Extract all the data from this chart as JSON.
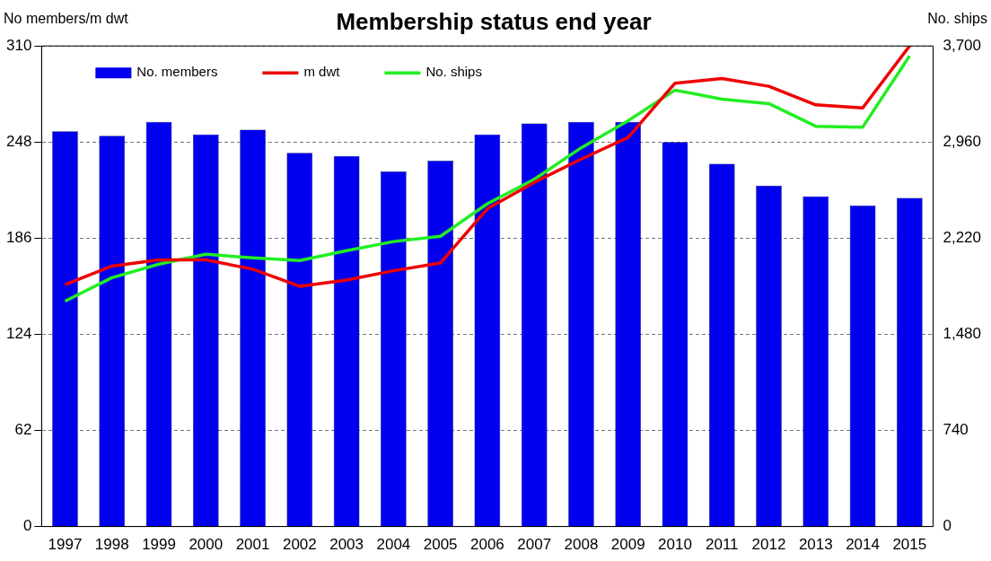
{
  "chart_data": {
    "type": "bar",
    "title": "Membership status end year",
    "ylabel": "No members/m dwt",
    "y2label": "No. ships",
    "categories": [
      "1997",
      "1998",
      "1999",
      "2000",
      "2001",
      "2002",
      "2003",
      "2004",
      "2005",
      "2006",
      "2007",
      "2008",
      "2009",
      "2010",
      "2011",
      "2012",
      "2013",
      "2014",
      "2015"
    ],
    "series": [
      {
        "name": "No. members",
        "color": "#0000ee",
        "values": [
          255,
          252,
          261,
          253,
          256,
          241,
          239,
          229,
          236,
          253,
          260,
          261,
          261,
          248,
          234,
          220,
          213,
          207,
          212
        ]
      },
      {
        "name": "m dwt",
        "type": "line",
        "color": "#ee0000",
        "values": [
          156,
          168,
          172,
          172,
          166,
          155,
          159,
          165,
          170,
          205,
          222,
          237,
          251,
          286,
          289,
          284,
          272,
          270,
          310
        ]
      },
      {
        "name": "No. ships",
        "type": "line",
        "axis": "y2",
        "color": "#22ee22",
        "values": [
          1735,
          1916,
          2020,
          2096,
          2069,
          2048,
          2124,
          2194,
          2235,
          2485,
          2673,
          2916,
          3124,
          3360,
          3290,
          3256,
          3082,
          3075,
          3624
        ]
      }
    ],
    "ylim": [
      0,
      310
    ],
    "yticks": [
      0,
      62,
      124,
      186,
      248,
      310
    ],
    "y2lim": [
      0,
      3700
    ],
    "y2ticks": [
      0,
      {
        "value": 740,
        "label": "740"
      },
      {
        "value": 1480,
        "label": "1,480"
      },
      {
        "value": 2220,
        "label": "2,220"
      },
      {
        "value": 2960,
        "label": "2,960"
      },
      {
        "value": 3700,
        "label": "3,700"
      }
    ],
    "grid": "y",
    "legend": "top left",
    "marker": "none",
    "line_style": "solid"
  }
}
